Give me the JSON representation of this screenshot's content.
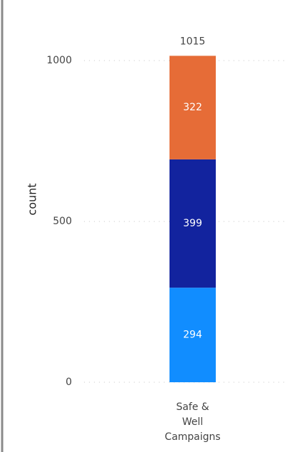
{
  "chart_data": {
    "type": "stacked_bar",
    "y_label": "count",
    "categories": [
      "Safe & Well Campaigns"
    ],
    "series": [
      {
        "color": "#118dff",
        "values": [
          294
        ]
      },
      {
        "color": "#12239e",
        "values": [
          399
        ]
      },
      {
        "color": "#e66c37",
        "values": [
          322
        ]
      }
    ],
    "totals": [
      1015
    ],
    "ylim": [
      0,
      1100
    ],
    "yticks": [
      0,
      500,
      1000
    ],
    "grid": true
  }
}
